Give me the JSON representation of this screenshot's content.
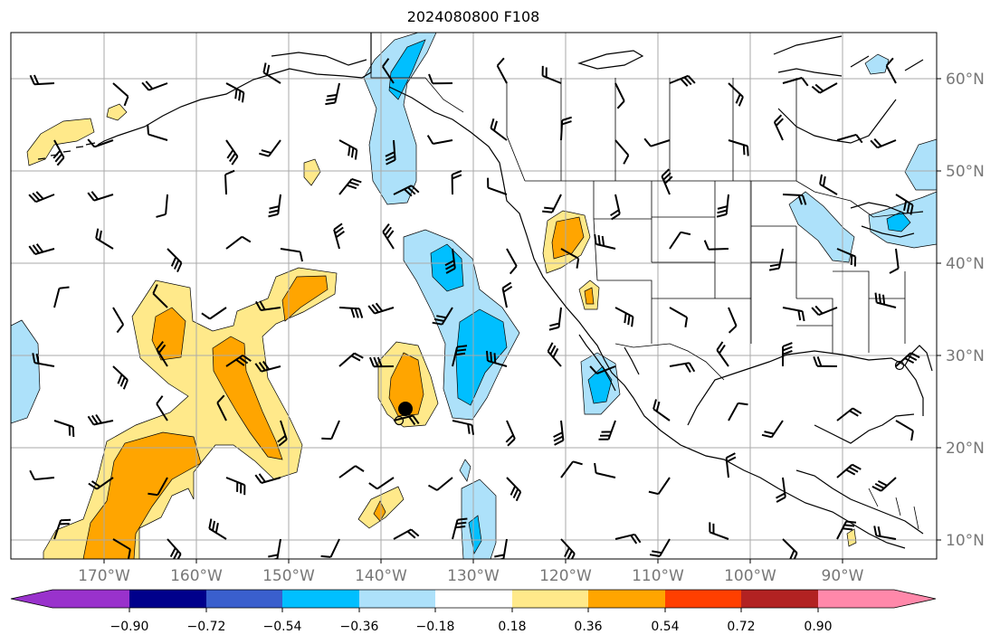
{
  "title": "2024080800 F108",
  "lon_labels": [
    "170°W",
    "160°W",
    "150°W",
    "140°W",
    "130°W",
    "120°W",
    "110°W",
    "100°W",
    "90°W"
  ],
  "lat_labels": [
    "60°N",
    "50°N",
    "40°N",
    "30°N",
    "20°N",
    "10°N"
  ],
  "colorbar": {
    "tick_labels": [
      "−0.90",
      "−0.72",
      "−0.54",
      "−0.36",
      "−0.18",
      "0.18",
      "0.36",
      "0.54",
      "0.72",
      "0.90"
    ],
    "colors": [
      "#9932cc",
      "#00008b",
      "#3a5fcd",
      "#00bfff",
      "#ade1fa",
      "#ffffff",
      "#ffe98a",
      "#ffa500",
      "#ff3f00",
      "#b22222",
      "#ff88aa"
    ]
  },
  "legend_colors": {
    "neg_light": "#ade1fa",
    "neg_mid": "#00bfff",
    "pos_light": "#ffe98a",
    "pos_mid": "#ffa500",
    "pos_strong": "#ff3f00"
  }
}
